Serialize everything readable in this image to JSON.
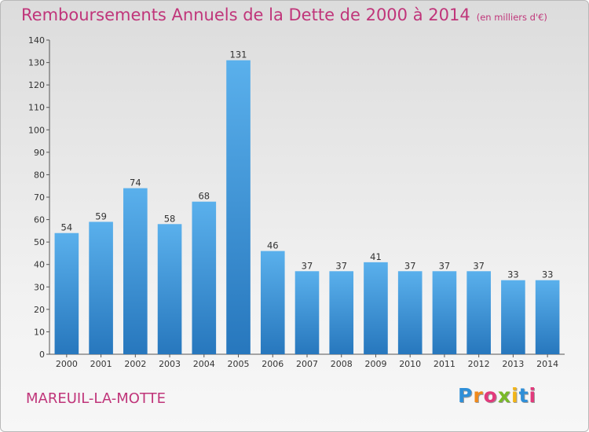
{
  "chart_data": {
    "type": "bar",
    "title": "Remboursements Annuels de la Dette de 2000 à 2014",
    "subtitle": "(en milliers d'€)",
    "categories": [
      "2000",
      "2001",
      "2002",
      "2003",
      "2004",
      "2005",
      "2006",
      "2007",
      "2008",
      "2009",
      "2010",
      "2011",
      "2012",
      "2013",
      "2014"
    ],
    "values": [
      54,
      59,
      74,
      58,
      68,
      131,
      46,
      37,
      37,
      41,
      37,
      37,
      37,
      33,
      33
    ],
    "ylim": [
      0,
      140
    ],
    "yticks": [
      0,
      10,
      20,
      30,
      40,
      50,
      60,
      70,
      80,
      90,
      100,
      110,
      120,
      130,
      140
    ],
    "grid": false,
    "bar_color": "#3b8fd6"
  },
  "location": "MAREUIL-LA-MOTTE",
  "logo": {
    "letters": [
      "P",
      "r",
      "o",
      "x",
      "i",
      "t",
      "i"
    ],
    "colors": [
      "#2f8fd8",
      "#f08a1c",
      "#e23a7c",
      "#79b928",
      "#f2b519",
      "#2f8fd8",
      "#e23a7c"
    ]
  },
  "colors": {
    "title": "#c0357a",
    "axis": "#333333"
  }
}
